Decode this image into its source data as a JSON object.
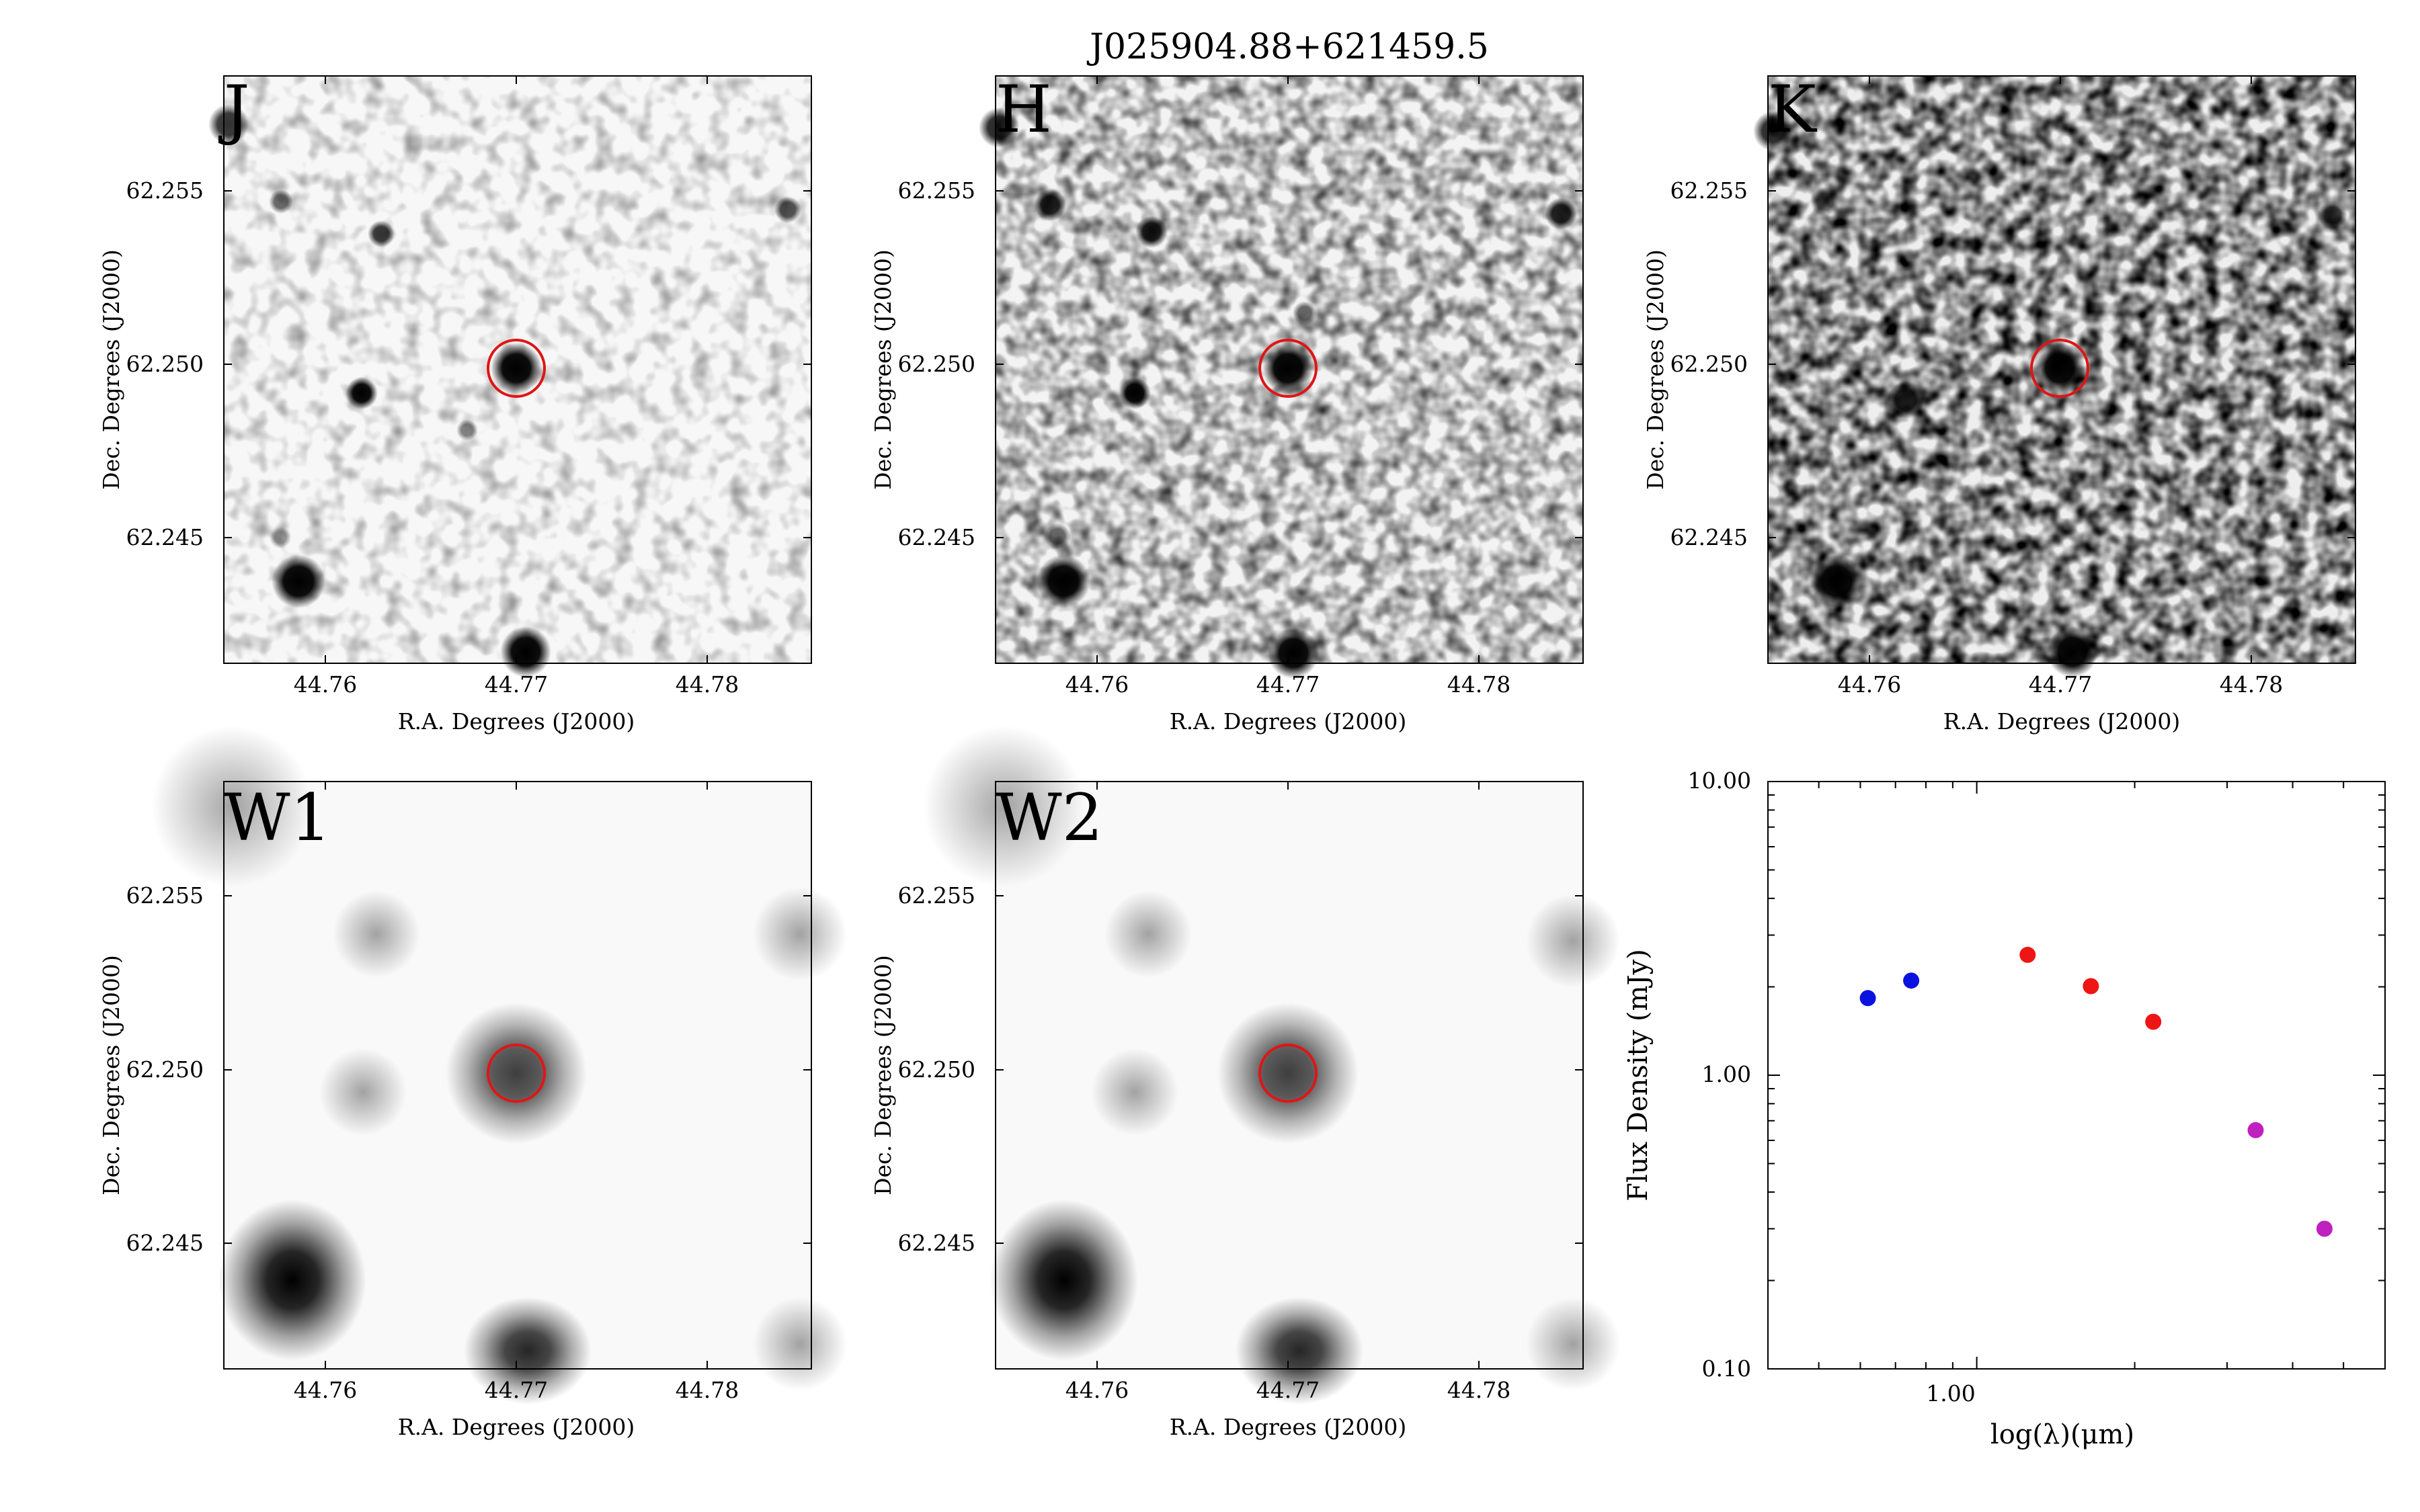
{
  "figure_title": "J025904.88+621459.5",
  "colors": {
    "band_label": "#ff00ff",
    "target_circle": "#e01515",
    "sed_blue": "#0a12e0",
    "sed_red": "#ee1515",
    "sed_magenta": "#c020c0"
  },
  "image_panels": [
    {
      "label": "J",
      "xlabel": "R.A. Degrees (J2000)",
      "ylabel": "Dec. Degrees (J2000)",
      "xticks": [
        "44.76",
        "44.77",
        "44.78"
      ],
      "yticks": [
        "62.255",
        "62.250",
        "62.245"
      ]
    },
    {
      "label": "H",
      "xlabel": "R.A. Degrees (J2000)",
      "ylabel": "Dec. Degrees (J2000)",
      "xticks": [
        "44.76",
        "44.77",
        "44.78"
      ],
      "yticks": [
        "62.255",
        "62.250",
        "62.245"
      ]
    },
    {
      "label": "K",
      "xlabel": "R.A. Degrees (J2000)",
      "ylabel": "Dec. Degrees (J2000)",
      "xticks": [
        "44.76",
        "44.77",
        "44.78"
      ],
      "yticks": [
        "62.255",
        "62.250",
        "62.245"
      ]
    },
    {
      "label": "W1",
      "xlabel": "R.A. Degrees (J2000)",
      "ylabel": "Dec. Degrees (J2000)",
      "xticks": [
        "44.76",
        "44.77",
        "44.78"
      ],
      "yticks": [
        "62.255",
        "62.250",
        "62.245"
      ]
    },
    {
      "label": "W2",
      "xlabel": "R.A. Degrees (J2000)",
      "ylabel": "Dec. Degrees (J2000)",
      "xticks": [
        "44.76",
        "44.77",
        "44.78"
      ],
      "yticks": [
        "62.255",
        "62.250",
        "62.245"
      ]
    }
  ],
  "chart_data": {
    "type": "scatter",
    "title": "",
    "xlabel": "log(λ)(μm)",
    "ylabel": "Flux Density (mJy)",
    "xscale": "log",
    "yscale": "log",
    "xlim": [
      0.4,
      6.0
    ],
    "ylim": [
      0.1,
      10.0
    ],
    "xtick_labels": [
      "1.00"
    ],
    "ytick_labels": [
      "10.00",
      "1.00",
      "0.10"
    ],
    "legend": "none",
    "grid": false,
    "series": [
      {
        "color": "#0a12e0",
        "x": [
          0.62,
          0.75
        ],
        "y": [
          1.83,
          2.1
        ]
      },
      {
        "color": "#ee1515",
        "x": [
          1.25,
          1.65,
          2.17
        ],
        "y": [
          2.57,
          2.01,
          1.52
        ]
      },
      {
        "color": "#c020c0",
        "x": [
          3.4,
          4.6
        ],
        "y": [
          0.65,
          0.3
        ]
      }
    ]
  }
}
